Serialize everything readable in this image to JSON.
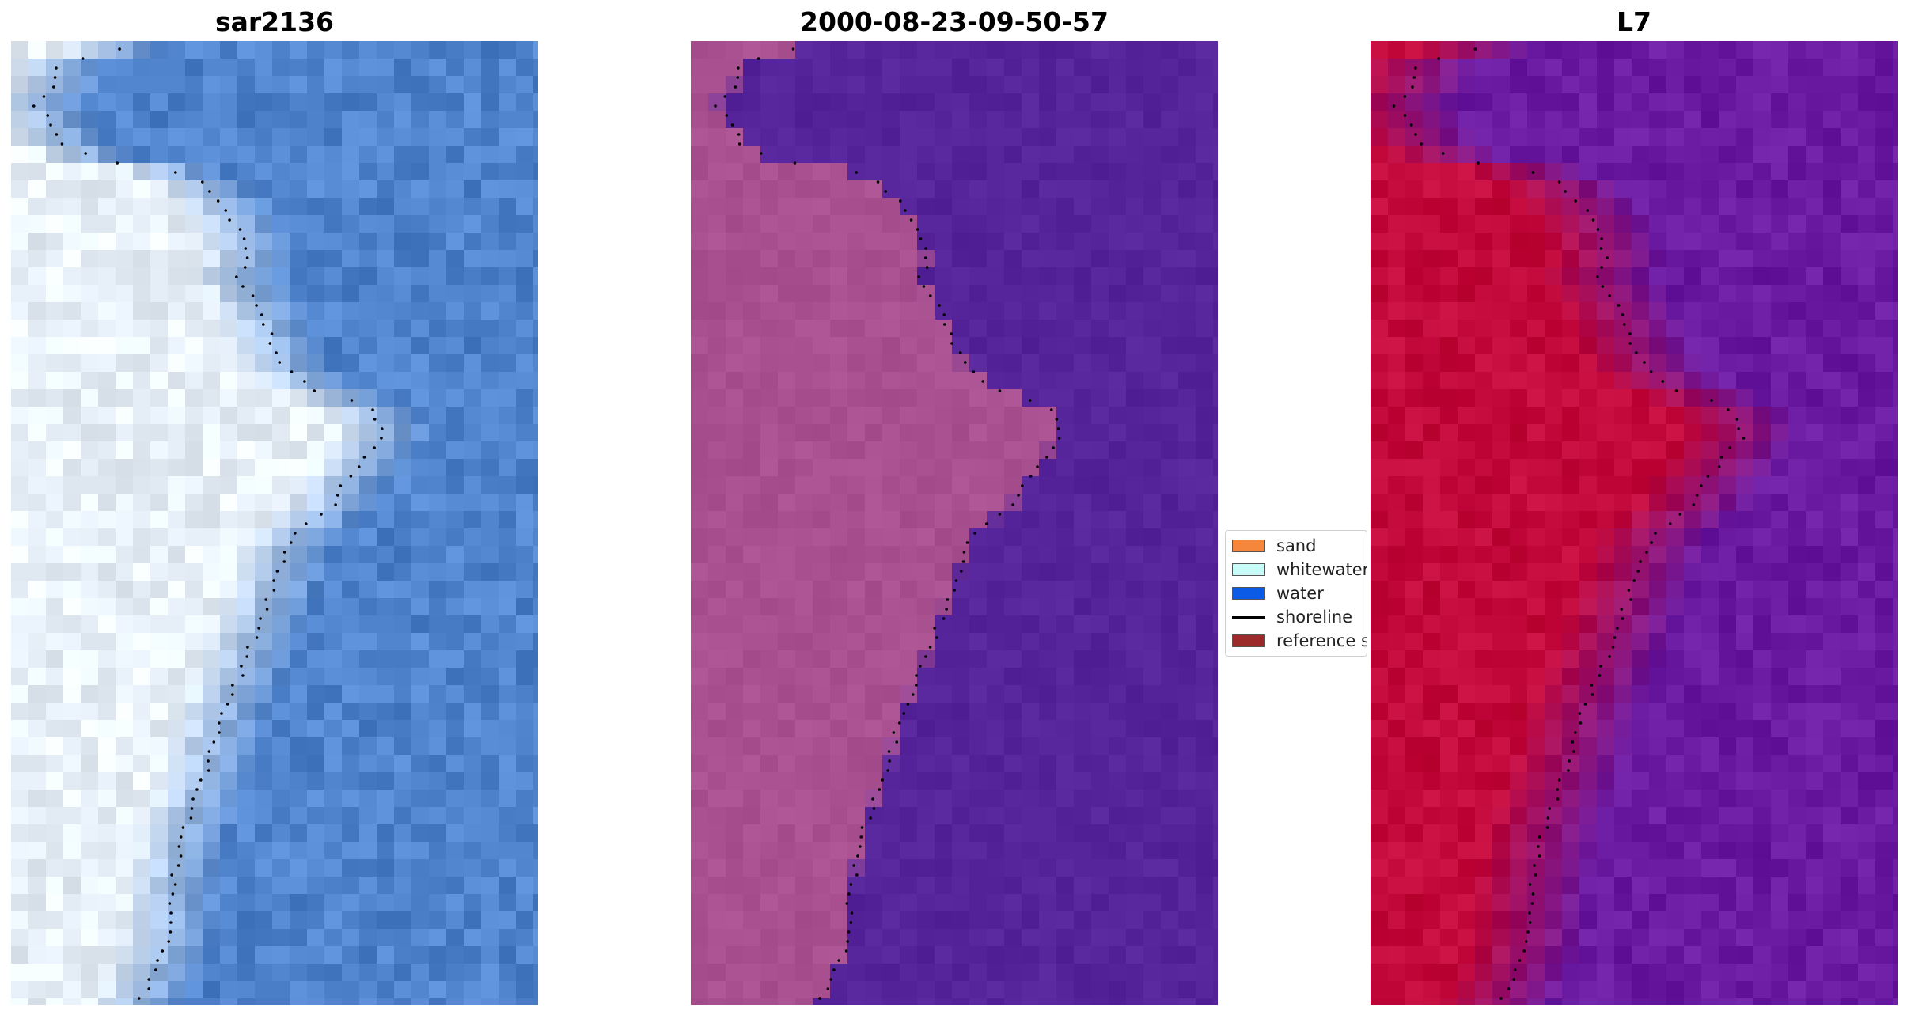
{
  "panels": [
    {
      "title": "sar2136",
      "kind": "rgb"
    },
    {
      "title": "2000-08-23-09-50-57",
      "kind": "classified"
    },
    {
      "title": "L7",
      "kind": "index"
    }
  ],
  "legend": [
    {
      "label": "sand",
      "color": "#f4873c",
      "type": "patch"
    },
    {
      "label": "whitewater",
      "color": "#c8fbf8",
      "type": "patch"
    },
    {
      "label": "water",
      "color": "#0b5be6",
      "type": "patch"
    },
    {
      "label": "shoreline",
      "color": "#000000",
      "type": "line"
    },
    {
      "label": "reference shoreline",
      "color": "#9b2b2b",
      "type": "patch"
    }
  ],
  "colors": {
    "rgb_land": "#e8f1fa",
    "rgb_water": "#4f83cc",
    "classified_land": "#a95090",
    "classified_water": "#55249a",
    "index_land": "#c2083a",
    "index_water": "#6a1aa0",
    "shoreline_dots": "#000000"
  }
}
